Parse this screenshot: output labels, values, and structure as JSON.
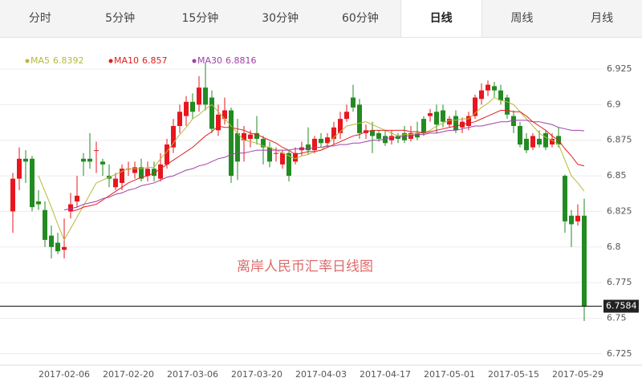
{
  "tabs": [
    {
      "label": "分时"
    },
    {
      "label": "5分钟"
    },
    {
      "label": "15分钟"
    },
    {
      "label": "30分钟"
    },
    {
      "label": "60分钟"
    },
    {
      "label": "日线",
      "active": true
    },
    {
      "label": "周线"
    },
    {
      "label": "月线"
    }
  ],
  "chart_data": {
    "type": "candlestick",
    "title": "离岸人民币汇率日线图",
    "categories": [
      null,
      null,
      null,
      null,
      null,
      null,
      null,
      null,
      "2017-02-06",
      null,
      null,
      null,
      null,
      null,
      null,
      null,
      null,
      null,
      "2017-02-20",
      null,
      null,
      null,
      null,
      null,
      null,
      null,
      null,
      null,
      "2017-03-06",
      null,
      null,
      null,
      null,
      null,
      null,
      null,
      null,
      null,
      "2017-03-20",
      null,
      null,
      null,
      null,
      null,
      null,
      null,
      null,
      null,
      "2017-04-03",
      null,
      null,
      null,
      null,
      null,
      null,
      null,
      null,
      null,
      "2017-04-17",
      null,
      null,
      null,
      null,
      null,
      null,
      null,
      null,
      null,
      "2017-05-01",
      null,
      null,
      null,
      null,
      null,
      null,
      null,
      null,
      null,
      "2017-05-15",
      null,
      null,
      null,
      null,
      null,
      null,
      null,
      null,
      null,
      "2017-05-29",
      null
    ],
    "open": [
      6.825,
      6.848,
      6.862,
      6.862,
      6.832,
      6.826,
      6.808,
      6.803,
      6.798,
      6.825,
      6.832,
      6.862,
      6.862,
      6.868,
      6.86,
      6.85,
      6.842,
      6.845,
      6.855,
      6.852,
      6.856,
      6.85,
      6.855,
      6.848,
      6.858,
      6.87,
      6.885,
      6.892,
      6.902,
      6.9,
      6.912,
      6.905,
      6.882,
      6.89,
      6.896,
      6.88,
      6.875,
      6.876,
      6.88,
      6.876,
      6.87,
      6.866,
      6.858,
      6.866,
      6.86,
      6.868,
      6.872,
      6.868,
      6.876,
      6.873,
      6.876,
      6.88,
      6.89,
      6.905,
      6.9,
      6.88,
      6.882,
      6.88,
      6.878,
      6.875,
      6.878,
      6.88,
      6.876,
      6.88,
      6.89,
      6.892,
      6.895,
      6.896,
      6.886,
      6.892,
      6.884,
      6.885,
      6.892,
      6.904,
      6.91,
      6.913,
      6.91,
      6.905,
      6.892,
      6.885,
      6.876,
      6.87,
      6.876,
      6.88,
      6.872,
      6.878,
      6.85,
      6.822,
      6.818,
      6.822
    ],
    "high": [
      6.852,
      6.87,
      6.868,
      6.864,
      6.84,
      6.832,
      6.815,
      6.81,
      6.82,
      6.838,
      6.85,
      6.866,
      6.88,
      6.874,
      6.862,
      6.858,
      6.852,
      6.858,
      6.86,
      6.86,
      6.862,
      6.86,
      6.86,
      6.866,
      6.876,
      6.89,
      6.9,
      6.906,
      6.908,
      6.92,
      6.929,
      6.91,
      6.9,
      6.905,
      6.898,
      6.89,
      6.885,
      6.882,
      6.892,
      6.878,
      6.874,
      6.87,
      6.868,
      6.868,
      6.87,
      6.874,
      6.884,
      6.878,
      6.88,
      6.88,
      6.888,
      6.895,
      6.9,
      6.914,
      6.904,
      6.886,
      6.888,
      6.882,
      6.882,
      6.882,
      6.88,
      6.885,
      6.885,
      6.888,
      6.892,
      6.897,
      6.9,
      6.9,
      6.892,
      6.896,
      6.891,
      6.895,
      6.907,
      6.915,
      6.917,
      6.916,
      6.914,
      6.907,
      6.896,
      6.888,
      6.88,
      6.88,
      6.882,
      6.882,
      6.88,
      6.884,
      6.851,
      6.826,
      6.83,
      6.834
    ],
    "low": [
      6.81,
      6.84,
      6.845,
      6.825,
      6.826,
      6.8,
      6.792,
      6.795,
      6.792,
      6.82,
      6.828,
      6.85,
      6.855,
      6.852,
      6.85,
      6.842,
      6.84,
      6.84,
      6.85,
      6.848,
      6.846,
      6.846,
      6.846,
      6.846,
      6.855,
      6.866,
      6.88,
      6.885,
      6.89,
      6.895,
      6.896,
      6.88,
      6.878,
      6.886,
      6.845,
      6.847,
      6.86,
      6.87,
      6.872,
      6.858,
      6.856,
      6.86,
      6.855,
      6.846,
      6.858,
      6.864,
      6.865,
      6.866,
      6.87,
      6.87,
      6.872,
      6.876,
      6.888,
      6.895,
      6.876,
      6.876,
      6.866,
      6.874,
      6.871,
      6.872,
      6.873,
      6.873,
      6.874,
      6.875,
      6.878,
      6.888,
      6.88,
      6.884,
      6.884,
      6.88,
      6.88,
      6.882,
      6.89,
      6.9,
      6.906,
      6.905,
      6.9,
      6.89,
      6.88,
      6.87,
      6.866,
      6.868,
      6.87,
      6.868,
      6.87,
      6.87,
      6.81,
      6.8,
      6.815,
      6.748
    ],
    "close": [
      6.848,
      6.862,
      6.86,
      6.828,
      6.83,
      6.805,
      6.8,
      6.797,
      6.8,
      6.83,
      6.836,
      6.86,
      6.86,
      6.868,
      6.858,
      6.848,
      6.848,
      6.855,
      6.855,
      6.856,
      6.848,
      6.855,
      6.85,
      6.858,
      6.872,
      6.885,
      6.895,
      6.902,
      6.895,
      6.912,
      6.9,
      6.883,
      6.893,
      6.896,
      6.85,
      6.86,
      6.88,
      6.879,
      6.876,
      6.87,
      6.86,
      6.866,
      6.866,
      6.85,
      6.866,
      6.87,
      6.868,
      6.876,
      6.873,
      6.877,
      6.884,
      6.89,
      6.895,
      6.898,
      6.88,
      6.882,
      6.878,
      6.876,
      6.873,
      6.878,
      6.876,
      6.875,
      6.88,
      6.877,
      6.88,
      6.894,
      6.886,
      6.888,
      6.89,
      6.882,
      6.888,
      6.892,
      6.905,
      6.91,
      6.914,
      6.91,
      6.903,
      6.893,
      6.885,
      6.872,
      6.868,
      6.878,
      6.872,
      6.87,
      6.876,
      6.872,
      6.818,
      6.816,
      6.822,
      6.7584
    ],
    "up_color": "#e8161e",
    "down_color": "#228b22",
    "series": [
      {
        "name": "MA5",
        "color": "#b8b83a",
        "values": [
          null,
          null,
          null,
          null,
          6.85,
          6.839,
          6.828,
          6.816,
          6.805,
          6.813,
          6.821,
          6.829,
          6.837,
          6.845,
          6.847,
          6.849,
          6.851,
          6.853,
          6.855,
          6.855,
          6.855,
          6.856,
          6.856,
          6.862,
          6.867,
          6.873,
          6.879,
          6.884,
          6.89,
          6.893,
          6.897,
          6.9,
          6.895,
          6.89,
          6.885,
          6.88,
          6.875,
          6.874,
          6.873,
          6.871,
          6.87,
          6.868,
          6.866,
          6.864,
          6.862,
          6.864,
          6.865,
          6.867,
          6.868,
          6.872,
          6.877,
          6.881,
          6.885,
          6.886,
          6.887,
          6.888,
          6.886,
          6.884,
          6.882,
          6.88,
          6.878,
          6.879,
          6.879,
          6.88,
          6.88,
          6.882,
          6.885,
          6.887,
          6.889,
          6.889,
          6.89,
          6.89,
          6.894,
          6.898,
          6.901,
          6.905,
          6.903,
          6.902,
          6.9,
          6.895,
          6.89,
          6.885,
          6.88,
          6.877,
          6.875,
          6.872,
          6.861,
          6.85,
          6.845,
          6.8392
        ]
      },
      {
        "name": "MA10",
        "color": "#e02020",
        "values": [
          null,
          null,
          null,
          null,
          null,
          null,
          null,
          null,
          null,
          6.825,
          6.826,
          6.828,
          6.829,
          6.83,
          6.833,
          6.836,
          6.839,
          6.842,
          6.845,
          6.847,
          6.849,
          6.85,
          6.852,
          6.855,
          6.858,
          6.861,
          6.864,
          6.867,
          6.87,
          6.874,
          6.878,
          6.881,
          6.885,
          6.884,
          6.884,
          6.883,
          6.882,
          6.88,
          6.879,
          6.877,
          6.875,
          6.873,
          6.87,
          6.868,
          6.865,
          6.866,
          6.867,
          6.867,
          6.868,
          6.87,
          6.872,
          6.874,
          6.876,
          6.878,
          6.879,
          6.881,
          6.882,
          6.882,
          6.882,
          6.882,
          6.882,
          6.882,
          6.881,
          6.881,
          6.88,
          6.881,
          6.882,
          6.883,
          6.884,
          6.885,
          6.886,
          6.887,
          6.888,
          6.89,
          6.892,
          6.894,
          6.896,
          6.896,
          6.895,
          6.895,
          6.892,
          6.888,
          6.885,
          6.882,
          6.878,
          6.875,
          6.869,
          6.864,
          6.858,
          6.857
        ]
      },
      {
        "name": "MA30",
        "color": "#a040a8",
        "values": [
          null,
          null,
          null,
          null,
          null,
          null,
          null,
          null,
          6.826,
          6.827,
          6.828,
          6.83,
          6.831,
          6.832,
          6.834,
          6.835,
          6.837,
          6.838,
          6.84,
          6.841,
          6.843,
          6.844,
          6.845,
          6.847,
          6.849,
          6.85,
          6.852,
          6.854,
          6.855,
          6.857,
          6.858,
          6.86,
          6.862,
          6.863,
          6.865,
          6.866,
          6.866,
          6.867,
          6.868,
          6.868,
          6.868,
          6.868,
          6.868,
          6.868,
          6.869,
          6.869,
          6.869,
          6.87,
          6.87,
          6.871,
          6.871,
          6.872,
          6.872,
          6.873,
          6.873,
          6.874,
          6.875,
          6.875,
          6.876,
          6.877,
          6.877,
          6.878,
          6.878,
          6.879,
          6.879,
          6.88,
          6.88,
          6.881,
          6.882,
          6.882,
          6.883,
          6.884,
          6.885,
          6.885,
          6.886,
          6.887,
          6.888,
          6.888,
          6.889,
          6.889,
          6.889,
          6.888,
          6.888,
          6.887,
          6.886,
          6.884,
          6.883,
          6.882,
          6.882,
          6.8816
        ]
      }
    ],
    "ylim": [
      6.717,
      6.938
    ],
    "yticks": [
      6.725,
      6.75,
      6.775,
      6.8,
      6.825,
      6.85,
      6.875,
      6.9,
      6.925
    ],
    "grid": true
  }
}
